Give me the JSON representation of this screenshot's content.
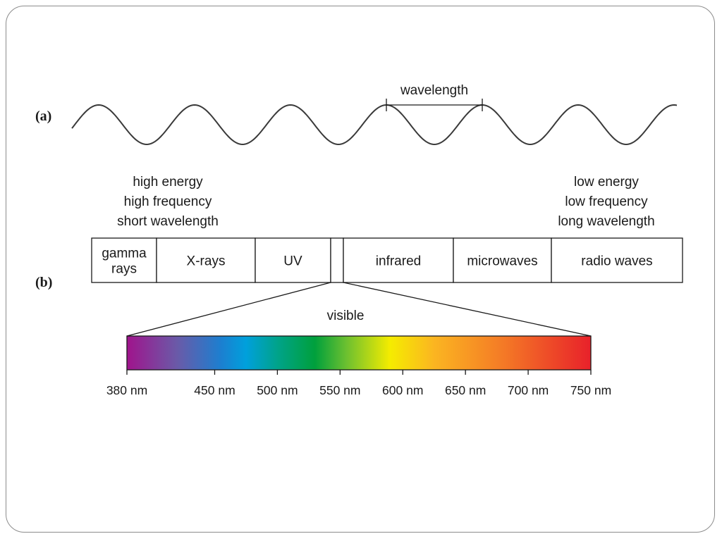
{
  "panel_a": {
    "label": "(a)",
    "wavelength_label": "wavelength"
  },
  "panel_b": {
    "label": "(b)",
    "high_end": [
      "high energy",
      "high frequency",
      "short wavelength"
    ],
    "low_end": [
      "low energy",
      "low frequency",
      "long wavelength"
    ],
    "bands": [
      {
        "lines": [
          "gamma",
          "rays"
        ]
      },
      {
        "lines": [
          "X-rays"
        ]
      },
      {
        "lines": [
          "UV"
        ]
      },
      {
        "lines": [
          ""
        ]
      },
      {
        "lines": [
          "infrared"
        ]
      },
      {
        "lines": [
          "microwaves"
        ]
      },
      {
        "lines": [
          "radio waves"
        ]
      }
    ],
    "visible_label": "visible",
    "visible_spectrum": {
      "unit": "nm",
      "range": [
        380,
        750
      ],
      "tick_values": [
        380,
        450,
        500,
        550,
        600,
        650,
        700,
        750
      ],
      "tick_labels": [
        "380 nm",
        "450 nm",
        "500 nm",
        "550 nm",
        "600 nm",
        "650 nm",
        "700 nm",
        "750 nm"
      ],
      "color_stops": [
        {
          "nm": 380,
          "color": "#a0148c"
        },
        {
          "nm": 420,
          "color": "#6a5aa8"
        },
        {
          "nm": 455,
          "color": "#1c7fd0"
        },
        {
          "nm": 475,
          "color": "#00a0dc"
        },
        {
          "nm": 500,
          "color": "#00a38a"
        },
        {
          "nm": 530,
          "color": "#00a03c"
        },
        {
          "nm": 555,
          "color": "#6cc030"
        },
        {
          "nm": 590,
          "color": "#f5ec00"
        },
        {
          "nm": 625,
          "color": "#fbb521"
        },
        {
          "nm": 680,
          "color": "#f47a26"
        },
        {
          "nm": 750,
          "color": "#e8212a"
        }
      ]
    }
  }
}
